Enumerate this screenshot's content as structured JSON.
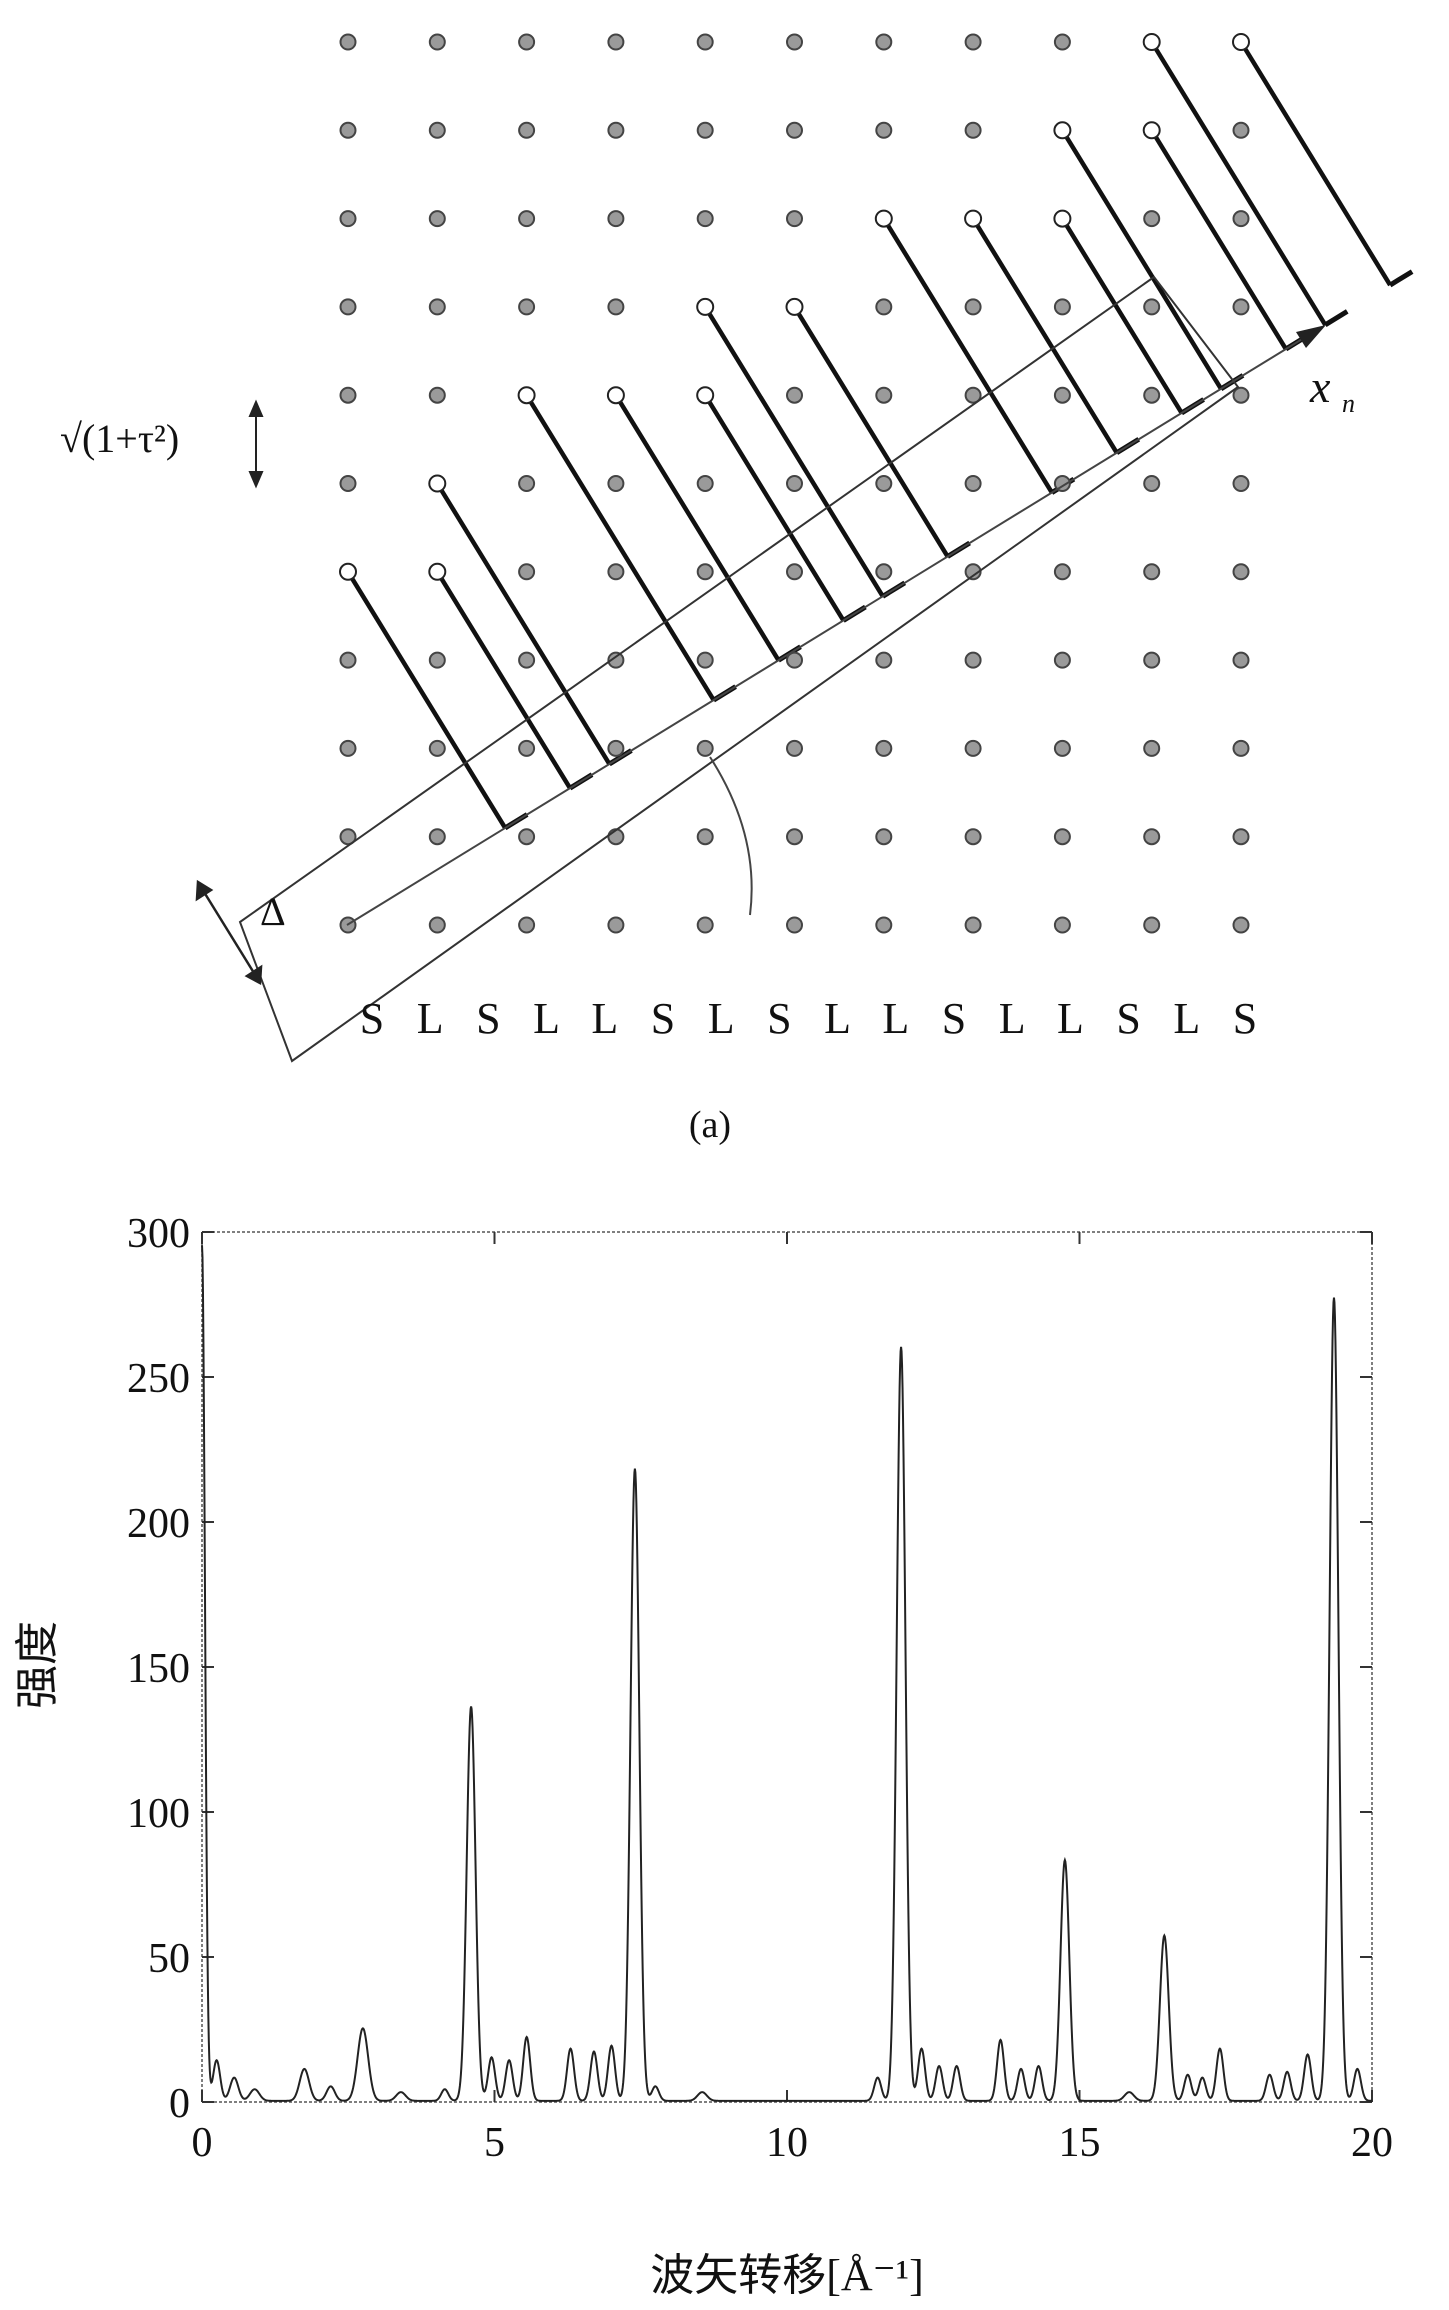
{
  "figure_a": {
    "caption": "(a)",
    "axis_label": "x",
    "axis_label_sub": "n",
    "spacing_label": "√(1+τ²)",
    "delta_label": "Δ",
    "sequence": [
      "S",
      "L",
      "S",
      "L",
      "L",
      "S",
      "L",
      "S",
      "L",
      "L",
      "S",
      "L",
      "L",
      "S",
      "L",
      "S"
    ],
    "grid": {
      "rows": 11,
      "cols": 11
    },
    "open_sites": [
      [
        4,
        0
      ],
      [
        4,
        1
      ],
      [
        5,
        1
      ],
      [
        6,
        2
      ],
      [
        6,
        3
      ],
      [
        6,
        4
      ],
      [
        7,
        4
      ],
      [
        7,
        5
      ],
      [
        8,
        6
      ],
      [
        8,
        7
      ],
      [
        8,
        8
      ],
      [
        9,
        8
      ],
      [
        9,
        9
      ],
      [
        10,
        9
      ],
      [
        10,
        10
      ]
    ],
    "start_site": [
      0,
      0
    ]
  },
  "chart_data": {
    "type": "line",
    "title": "",
    "xlabel": "波矢转移[Å⁻¹]",
    "ylabel": "强度",
    "xlim": [
      0,
      20
    ],
    "ylim": [
      0,
      300
    ],
    "xticks": [
      0,
      5,
      10,
      15,
      20
    ],
    "yticks": [
      0,
      50,
      100,
      150,
      200,
      250,
      300
    ],
    "grid": false,
    "peaks": [
      {
        "x": 0.0,
        "y": 295,
        "w": 0.05
      },
      {
        "x": 0.25,
        "y": 14,
        "w": 0.06
      },
      {
        "x": 0.55,
        "y": 8,
        "w": 0.07
      },
      {
        "x": 0.9,
        "y": 4,
        "w": 0.08
      },
      {
        "x": 1.75,
        "y": 11,
        "w": 0.08
      },
      {
        "x": 2.2,
        "y": 5,
        "w": 0.07
      },
      {
        "x": 2.75,
        "y": 25,
        "w": 0.09
      },
      {
        "x": 3.4,
        "y": 3,
        "w": 0.08
      },
      {
        "x": 4.15,
        "y": 4,
        "w": 0.06
      },
      {
        "x": 4.6,
        "y": 136,
        "w": 0.075
      },
      {
        "x": 4.95,
        "y": 15,
        "w": 0.06
      },
      {
        "x": 5.25,
        "y": 14,
        "w": 0.06
      },
      {
        "x": 5.55,
        "y": 22,
        "w": 0.06
      },
      {
        "x": 6.3,
        "y": 18,
        "w": 0.06
      },
      {
        "x": 6.7,
        "y": 17,
        "w": 0.06
      },
      {
        "x": 7.0,
        "y": 19,
        "w": 0.06
      },
      {
        "x": 7.4,
        "y": 218,
        "w": 0.075
      },
      {
        "x": 7.75,
        "y": 5,
        "w": 0.06
      },
      {
        "x": 8.55,
        "y": 3,
        "w": 0.08
      },
      {
        "x": 11.55,
        "y": 8,
        "w": 0.06
      },
      {
        "x": 11.95,
        "y": 260,
        "w": 0.075
      },
      {
        "x": 12.3,
        "y": 18,
        "w": 0.06
      },
      {
        "x": 12.6,
        "y": 12,
        "w": 0.06
      },
      {
        "x": 12.9,
        "y": 12,
        "w": 0.06
      },
      {
        "x": 13.65,
        "y": 21,
        "w": 0.06
      },
      {
        "x": 14.0,
        "y": 11,
        "w": 0.06
      },
      {
        "x": 14.3,
        "y": 12,
        "w": 0.06
      },
      {
        "x": 14.75,
        "y": 83,
        "w": 0.075
      },
      {
        "x": 15.85,
        "y": 3,
        "w": 0.08
      },
      {
        "x": 16.45,
        "y": 57,
        "w": 0.075
      },
      {
        "x": 16.85,
        "y": 9,
        "w": 0.06
      },
      {
        "x": 17.1,
        "y": 8,
        "w": 0.06
      },
      {
        "x": 17.4,
        "y": 18,
        "w": 0.06
      },
      {
        "x": 18.25,
        "y": 9,
        "w": 0.06
      },
      {
        "x": 18.55,
        "y": 10,
        "w": 0.06
      },
      {
        "x": 18.9,
        "y": 16,
        "w": 0.06
      },
      {
        "x": 19.35,
        "y": 277,
        "w": 0.075
      },
      {
        "x": 19.75,
        "y": 11,
        "w": 0.06
      }
    ]
  }
}
